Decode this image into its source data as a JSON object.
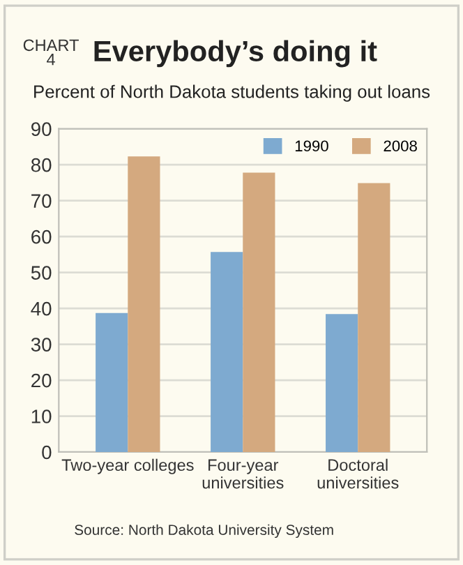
{
  "chart_data": {
    "type": "bar",
    "title": "Everybody’s doing it",
    "subtitle": "Percent of North Dakota students taking out loans",
    "annotations": [
      "CHART\n4",
      "Source: North Dakota University System"
    ],
    "categories": [
      "Two-year colleges",
      "Four-year\nuniversities",
      "Doctoral\nuniversities"
    ],
    "series": [
      {
        "name": "1990",
        "color": "#7eaad0",
        "values": [
          38.7,
          55.7,
          38.4
        ]
      },
      {
        "name": "2008",
        "color": "#d4a97f",
        "values": [
          82.3,
          77.8,
          74.9
        ]
      }
    ],
    "ylim": [
      0,
      90
    ],
    "yticks": [
      0,
      10,
      20,
      30,
      40,
      50,
      60,
      70,
      80,
      90
    ],
    "grid": "y",
    "legend": "top right"
  }
}
